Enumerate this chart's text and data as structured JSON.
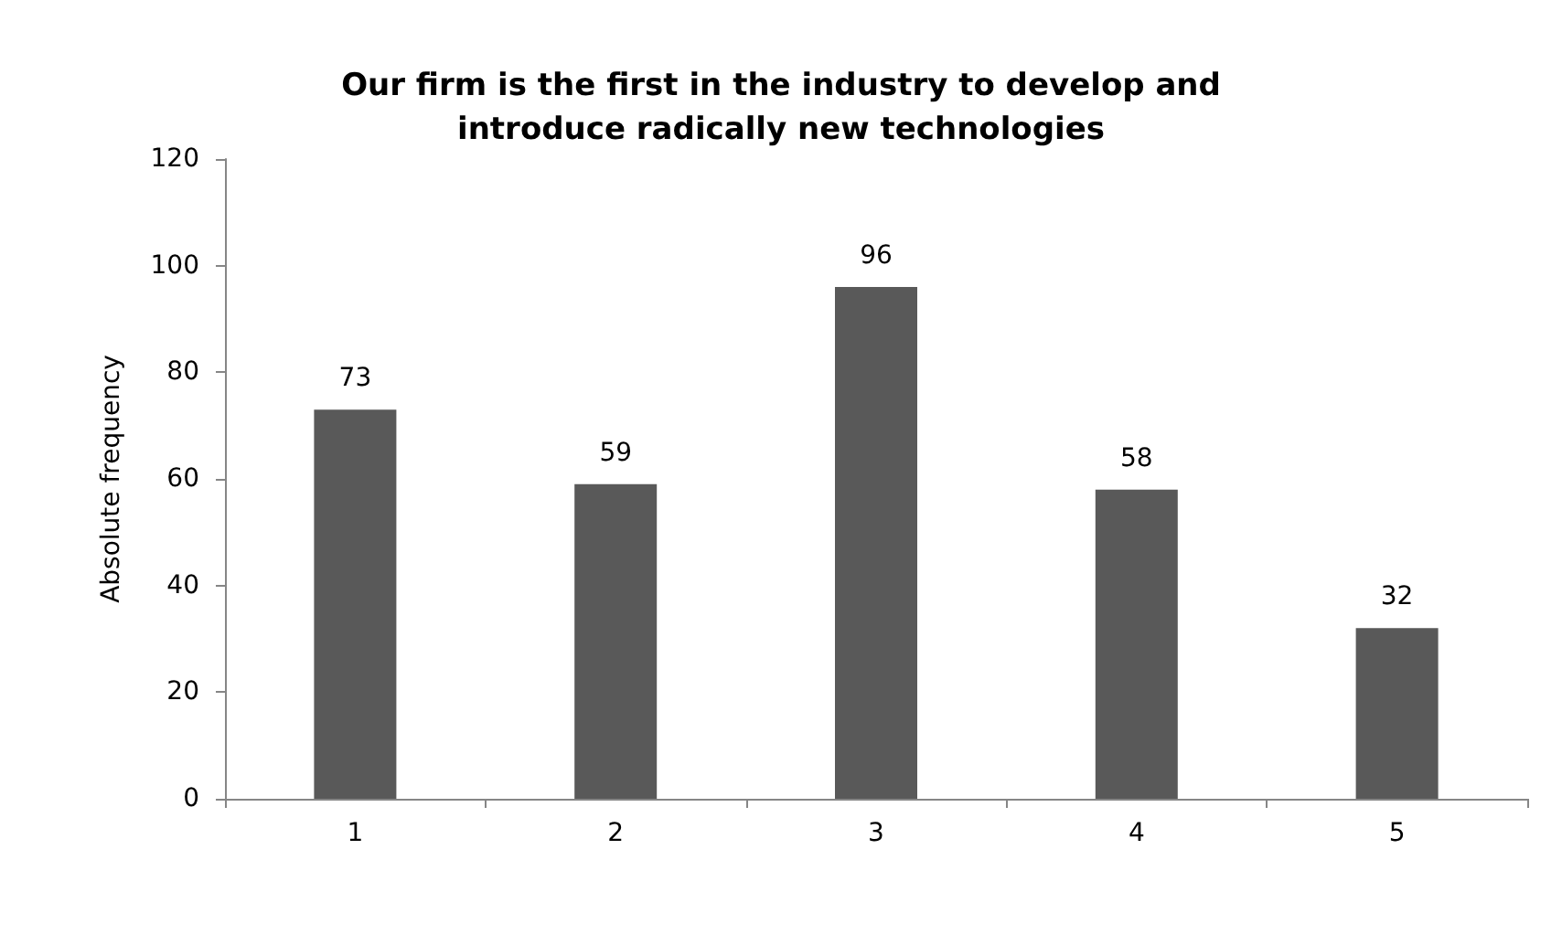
{
  "chart_data": {
    "type": "bar",
    "title": "Our firm is the first in the industry to develop and\nintroduce radically new technologies",
    "ylabel": "Absolute frequency",
    "categories": [
      "1",
      "2",
      "3",
      "4",
      "5"
    ],
    "values": [
      73,
      59,
      96,
      58,
      32
    ],
    "color": "#595959",
    "ylim": [
      0,
      120
    ],
    "yticks": [
      0,
      20,
      40,
      60,
      80,
      100,
      120
    ],
    "data_labels": true
  }
}
